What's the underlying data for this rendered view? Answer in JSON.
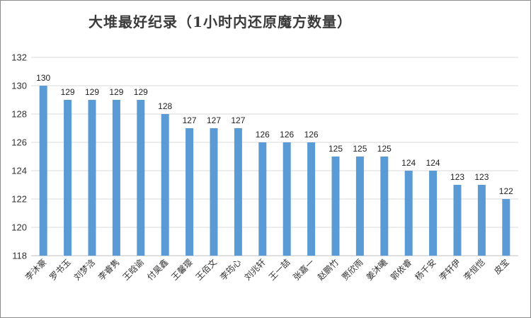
{
  "chart_data": {
    "type": "bar",
    "title": "大堆最好纪录（1小时内还原魔方数量）",
    "categories": [
      "李沐豪",
      "罗书玉",
      "刘梦浛",
      "李睿隽",
      "王晗谕",
      "付昊鑫",
      "王馨璎",
      "王佰文",
      "李筠心",
      "刘兆轩",
      "王一喆",
      "张嘉一",
      "赵鹏竹",
      "贾欣雨",
      "姜沐曦",
      "郭依睿",
      "杨千安",
      "李轩伊",
      "李恒恺",
      "皮宝"
    ],
    "values": [
      130,
      129,
      129,
      129,
      129,
      128,
      127,
      127,
      127,
      126,
      126,
      126,
      125,
      125,
      125,
      124,
      124,
      123,
      123,
      122
    ],
    "ylim": [
      118,
      132
    ],
    "yticks": [
      118,
      120,
      122,
      124,
      126,
      128,
      130,
      132
    ],
    "grid": true,
    "bar_color": "#5b9bd5",
    "grid_color": "#d9d9d9"
  }
}
